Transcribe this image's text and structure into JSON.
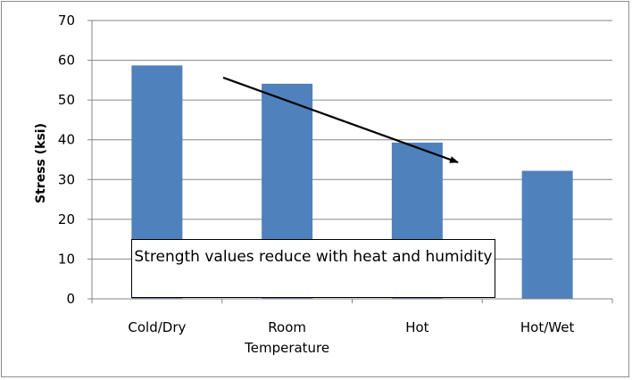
{
  "chart_data": {
    "type": "bar",
    "categories": [
      "Cold/Dry",
      "Room Temperature",
      "Hot",
      "Hot/Wet"
    ],
    "category_lines": [
      [
        "Cold/Dry"
      ],
      [
        "Room",
        "Temperature"
      ],
      [
        "Hot"
      ],
      [
        "Hot/Wet"
      ]
    ],
    "values": [
      58.7,
      54.1,
      39.3,
      32.2
    ],
    "ylabel": "Stress (ksi)",
    "xlabel": "",
    "ylim": [
      0,
      70
    ],
    "yticks": [
      0,
      10,
      20,
      30,
      40,
      50,
      60,
      70
    ],
    "grid": true,
    "bar_color": "#4f81bd",
    "annotation": "Strength values reduce with heat and humidity"
  }
}
